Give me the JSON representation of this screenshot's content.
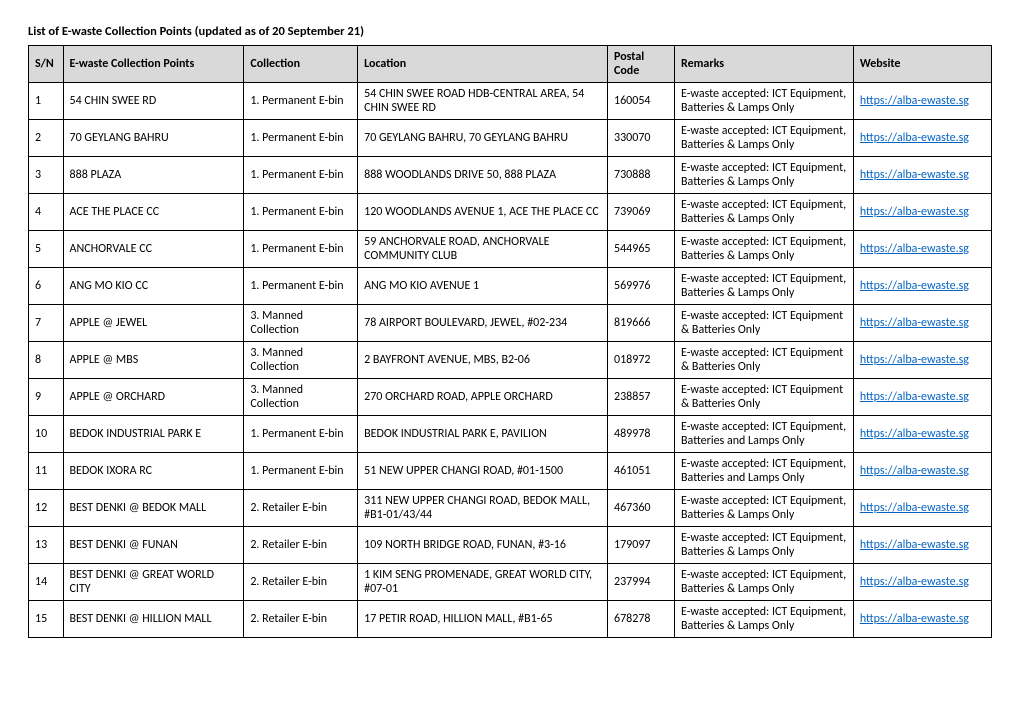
{
  "title": "List of E-waste Collection Points (updated as of 20 September 21)",
  "columns": [
    "S/N",
    "E-waste Collection Points",
    "Collection",
    "Location",
    "Postal Code",
    "Remarks",
    "Website"
  ],
  "website_url": "https://alba-ewaste.sg",
  "rows": [
    {
      "sn": "1",
      "name": "54 CHIN SWEE RD",
      "collection": "1. Permanent E-bin",
      "location": "54 CHIN SWEE ROAD HDB-CENTRAL AREA, 54 CHIN SWEE RD",
      "postal": "160054",
      "remarks": "E-waste accepted: ICT Equipment, Batteries & Lamps Only"
    },
    {
      "sn": "2",
      "name": "70 GEYLANG BAHRU",
      "collection": "1. Permanent E-bin",
      "location": "70 GEYLANG BAHRU, 70 GEYLANG BAHRU",
      "postal": "330070",
      "remarks": "E-waste accepted: ICT Equipment, Batteries & Lamps Only"
    },
    {
      "sn": "3",
      "name": "888 PLAZA",
      "collection": "1. Permanent E-bin",
      "location": "888 WOODLANDS DRIVE 50, 888 PLAZA",
      "postal": "730888",
      "remarks": "E-waste accepted: ICT Equipment, Batteries & Lamps Only"
    },
    {
      "sn": "4",
      "name": "ACE THE PLACE CC",
      "collection": "1. Permanent E-bin",
      "location": "120 WOODLANDS AVENUE 1, ACE THE PLACE CC",
      "postal": "739069",
      "remarks": "E-waste accepted: ICT Equipment, Batteries & Lamps Only"
    },
    {
      "sn": "5",
      "name": "ANCHORVALE CC",
      "collection": "1. Permanent E-bin",
      "location": "59 ANCHORVALE ROAD, ANCHORVALE COMMUNITY CLUB",
      "postal": "544965",
      "remarks": "E-waste accepted: ICT Equipment, Batteries & Lamps Only"
    },
    {
      "sn": "6",
      "name": "ANG MO KIO CC",
      "collection": "1. Permanent E-bin",
      "location": "ANG MO KIO AVENUE 1",
      "postal": "569976",
      "remarks": "E-waste accepted: ICT Equipment, Batteries & Lamps Only"
    },
    {
      "sn": "7",
      "name": "APPLE @ JEWEL",
      "collection": "3. Manned Collection",
      "location": "78 AIRPORT BOULEVARD, JEWEL, #02-234",
      "postal": "819666",
      "remarks": "E-waste accepted: ICT Equipment & Batteries Only"
    },
    {
      "sn": "8",
      "name": "APPLE @ MBS",
      "collection": "3. Manned Collection",
      "location": "2 BAYFRONT AVENUE, MBS, B2-06",
      "postal": "018972",
      "remarks": "E-waste accepted: ICT Equipment & Batteries Only"
    },
    {
      "sn": "9",
      "name": "APPLE @ ORCHARD",
      "collection": "3. Manned Collection",
      "location": "270 ORCHARD ROAD, APPLE ORCHARD",
      "postal": "238857",
      "remarks": "E-waste accepted: ICT Equipment & Batteries Only"
    },
    {
      "sn": "10",
      "name": "BEDOK INDUSTRIAL PARK E",
      "collection": "1. Permanent E-bin",
      "location": "BEDOK INDUSTRIAL PARK E, PAVILION",
      "postal": "489978",
      "remarks": "E-waste accepted: ICT Equipment, Batteries and Lamps Only"
    },
    {
      "sn": "11",
      "name": "BEDOK IXORA RC",
      "collection": "1. Permanent E-bin",
      "location": "51 NEW UPPER CHANGI ROAD, #01-1500",
      "postal": "461051",
      "remarks": "E-waste accepted: ICT Equipment, Batteries and Lamps Only"
    },
    {
      "sn": "12",
      "name": "BEST DENKI @ BEDOK MALL",
      "collection": "2. Retailer E-bin",
      "location": "311 NEW UPPER CHANGI ROAD, BEDOK MALL, #B1-01/43/44",
      "postal": "467360",
      "remarks": "E-waste accepted: ICT Equipment, Batteries & Lamps Only"
    },
    {
      "sn": "13",
      "name": "BEST DENKI @ FUNAN",
      "collection": "2. Retailer E-bin",
      "location": "109 NORTH BRIDGE ROAD, FUNAN, #3-16",
      "postal": "179097",
      "remarks": "E-waste accepted: ICT Equipment, Batteries & Lamps Only"
    },
    {
      "sn": "14",
      "name": "BEST DENKI @ GREAT WORLD CITY",
      "collection": "2. Retailer E-bin",
      "location": "1 KIM SENG PROMENADE, GREAT WORLD CITY, #07-01",
      "postal": "237994",
      "remarks": "E-waste accepted: ICT Equipment, Batteries & Lamps Only"
    },
    {
      "sn": "15",
      "name": "BEST DENKI @ HILLION MALL",
      "collection": "2. Retailer E-bin",
      "location": "17 PETIR ROAD, HILLION MALL, #B1-65",
      "postal": "678278",
      "remarks": "E-waste accepted: ICT Equipment, Batteries & Lamps Only"
    }
  ]
}
